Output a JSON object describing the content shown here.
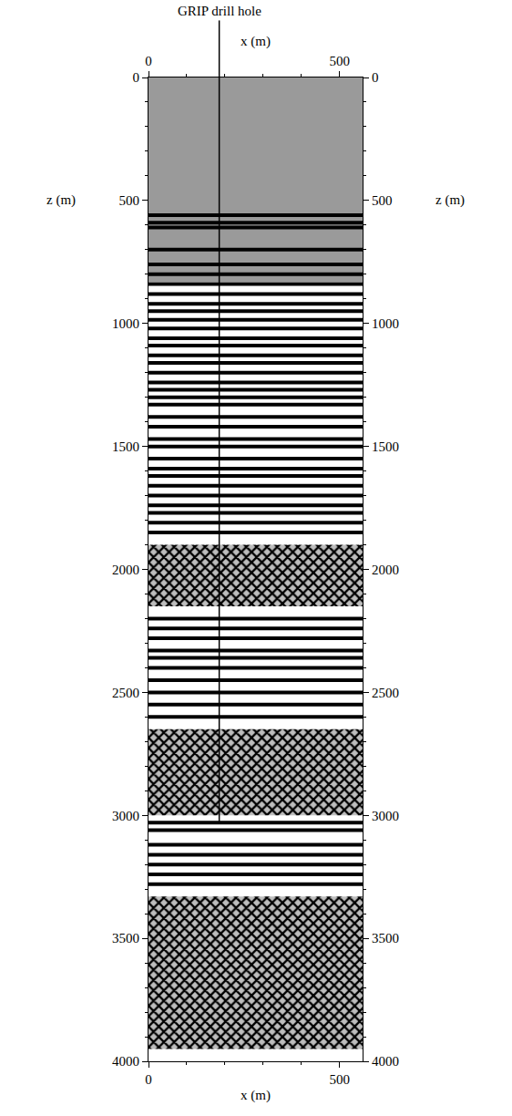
{
  "chart_data": {
    "type": "section",
    "xlabel": "x (m)",
    "ylabel": "z (m)",
    "xlim": [
      0,
      560
    ],
    "xticks": [
      0,
      500
    ],
    "ylim": [
      4000,
      0
    ],
    "yticks": [
      0,
      500,
      1000,
      1500,
      2000,
      2500,
      3000,
      3500,
      4000
    ],
    "drill_hole": {
      "label": "GRIP drill hole",
      "x": 185,
      "z_end": 3030
    },
    "noise_zone": [
      0,
      830
    ],
    "scattering_zones": [
      [
        1900,
        2150
      ],
      [
        2650,
        3000
      ],
      [
        3330,
        3950
      ]
    ],
    "reflectors": [
      560,
      590,
      610,
      700,
      760,
      800,
      840,
      880,
      920,
      950,
      985,
      1020,
      1060,
      1090,
      1130,
      1160,
      1200,
      1240,
      1270,
      1300,
      1330,
      1380,
      1420,
      1470,
      1500,
      1550,
      1590,
      1620,
      1660,
      1700,
      1740,
      1770,
      1810,
      1850,
      2200,
      2240,
      2280,
      2330,
      2360,
      2400,
      2450,
      2500,
      2550,
      2600,
      3030,
      3060,
      3120,
      3160,
      3200,
      3240,
      3280
    ]
  }
}
